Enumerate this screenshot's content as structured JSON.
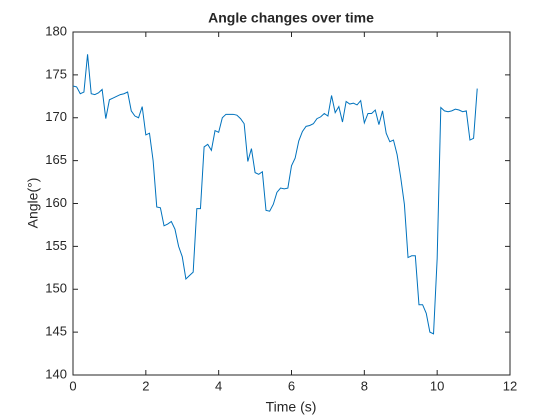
{
  "chart_data": {
    "type": "line",
    "title": "Angle changes over time",
    "x_label": "Time (s)",
    "y_label": "Angle(°)",
    "x": [
      0,
      0.1,
      0.2,
      0.3,
      0.4,
      0.5,
      0.6,
      0.7,
      0.8,
      0.9,
      1.0,
      1.1,
      1.2,
      1.3,
      1.4,
      1.5,
      1.6,
      1.7,
      1.8,
      1.9,
      2.0,
      2.1,
      2.2,
      2.3,
      2.4,
      2.5,
      2.6,
      2.7,
      2.8,
      2.9,
      3.0,
      3.1,
      3.2,
      3.3,
      3.4,
      3.5,
      3.6,
      3.7,
      3.8,
      3.9,
      4.0,
      4.1,
      4.2,
      4.3,
      4.4,
      4.5,
      4.6,
      4.7,
      4.8,
      4.9,
      5.0,
      5.1,
      5.2,
      5.3,
      5.4,
      5.5,
      5.6,
      5.7,
      5.8,
      5.9,
      6.0,
      6.1,
      6.2,
      6.3,
      6.4,
      6.5,
      6.6,
      6.7,
      6.8,
      6.9,
      7.0,
      7.1,
      7.2,
      7.3,
      7.4,
      7.5,
      7.6,
      7.7,
      7.8,
      7.9,
      8.0,
      8.1,
      8.2,
      8.3,
      8.4,
      8.5,
      8.6,
      8.7,
      8.8,
      8.9,
      9.0,
      9.1,
      9.2,
      9.3,
      9.4,
      9.5,
      9.6,
      9.7,
      9.8,
      9.9,
      10.0,
      10.1,
      10.2,
      10.3,
      10.4,
      10.5,
      10.6,
      10.7,
      10.8,
      10.9,
      11.0,
      11.1
    ],
    "series": [
      {
        "name": "Angle",
        "color": "#0072bd",
        "values": [
          173.7,
          173.6,
          172.8,
          173.0,
          177.4,
          172.8,
          172.7,
          172.9,
          173.3,
          169.9,
          172.1,
          172.3,
          172.5,
          172.7,
          172.8,
          173.0,
          170.8,
          170.2,
          170.0,
          171.3,
          168.0,
          168.2,
          165.0,
          159.6,
          159.5,
          157.4,
          157.6,
          157.9,
          157.0,
          155.0,
          153.8,
          151.2,
          151.6,
          152.0,
          159.4,
          159.4,
          166.6,
          166.9,
          166.2,
          168.5,
          168.3,
          170.0,
          170.4,
          170.4,
          170.4,
          170.3,
          169.9,
          169.3,
          164.9,
          166.4,
          163.6,
          163.4,
          163.7,
          159.2,
          159.1,
          159.9,
          161.3,
          161.8,
          161.7,
          161.8,
          164.4,
          165.3,
          167.3,
          168.4,
          169.0,
          169.1,
          169.3,
          169.9,
          170.1,
          170.5,
          170.2,
          172.6,
          170.6,
          171.3,
          169.5,
          171.9,
          171.6,
          171.7,
          171.5,
          172.0,
          169.4,
          170.5,
          170.5,
          170.9,
          169.2,
          170.8,
          168.2,
          167.2,
          167.4,
          165.7,
          163.0,
          159.9,
          153.7,
          153.9,
          153.9,
          148.2,
          148.2,
          147.2,
          145.0,
          144.8,
          153.6,
          171.2,
          170.8,
          170.7,
          170.8,
          171.0,
          170.9,
          170.7,
          170.8,
          167.4,
          167.6,
          173.4
        ]
      }
    ],
    "xlim": [
      0,
      12
    ],
    "xticks": [
      0,
      2,
      4,
      6,
      8,
      10,
      12
    ],
    "ylim": [
      140,
      180
    ],
    "yticks": [
      140,
      145,
      150,
      155,
      160,
      165,
      170,
      175,
      180
    ]
  }
}
